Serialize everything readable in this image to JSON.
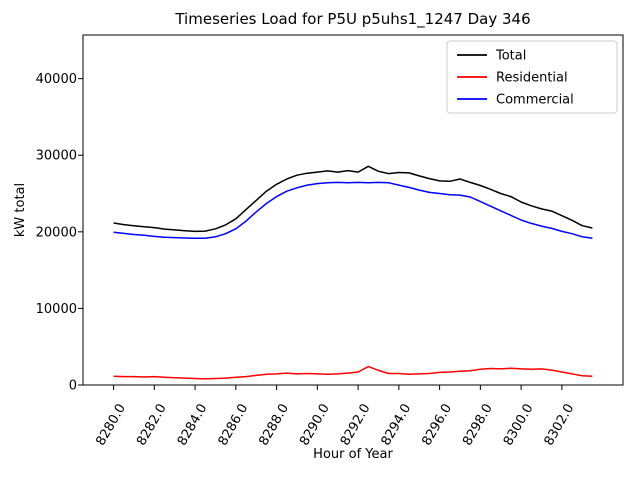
{
  "title": "Timeseries Load for P5U p5uhs1_1247  Day 346",
  "axes": {
    "xlabel": "Hour of Year",
    "ylabel": "kW total",
    "xlim": [
      8278.5,
      8305.0
    ],
    "ylim": [
      0,
      45700
    ],
    "xtick_values": [
      8280,
      8282,
      8284,
      8286,
      8288,
      8290,
      8292,
      8294,
      8296,
      8298,
      8300,
      8302
    ],
    "xtick_labels": [
      "8280.0",
      "8282.0",
      "8284.0",
      "8286.0",
      "8288.0",
      "8290.0",
      "8292.0",
      "8294.0",
      "8296.0",
      "8298.0",
      "8300.0",
      "8302.0"
    ],
    "xtick_rotation": 60,
    "ytick_values": [
      0,
      10000,
      20000,
      30000,
      40000
    ],
    "ytick_labels": [
      "0",
      "10000",
      "20000",
      "30000",
      "40000"
    ],
    "grid": false
  },
  "legend": {
    "position": "upper-right",
    "entries": [
      {
        "label": "Total",
        "color": "#000000"
      },
      {
        "label": "Residential",
        "color": "#ff0000"
      },
      {
        "label": "Commercial",
        "color": "#0000ff"
      }
    ]
  },
  "chart_data": {
    "type": "line",
    "title": "Timeseries Load for P5U p5uhs1_1247  Day 346",
    "xlabel": "Hour of Year",
    "ylabel": "kW total",
    "xlim": [
      8278.5,
      8305.0
    ],
    "ylim": [
      0,
      45700
    ],
    "grid": false,
    "legend_position": "upper right",
    "x": [
      8280.0,
      8280.5,
      8281.0,
      8281.5,
      8282.0,
      8282.5,
      8283.0,
      8283.5,
      8284.0,
      8284.5,
      8285.0,
      8285.5,
      8286.0,
      8286.5,
      8287.0,
      8287.5,
      8288.0,
      8288.5,
      8289.0,
      8289.5,
      8290.0,
      8290.5,
      8291.0,
      8291.5,
      8292.0,
      8292.5,
      8293.0,
      8293.5,
      8294.0,
      8294.5,
      8295.0,
      8295.5,
      8296.0,
      8296.5,
      8297.0,
      8297.5,
      8298.0,
      8298.5,
      8299.0,
      8299.5,
      8300.0,
      8300.5,
      8301.0,
      8301.5,
      8302.0,
      8302.5,
      8303.0,
      8303.5
    ],
    "series": [
      {
        "name": "Total",
        "color": "#000000",
        "values": [
          21150,
          20950,
          20800,
          20650,
          20550,
          20350,
          20250,
          20150,
          20050,
          20100,
          20400,
          20900,
          21700,
          22900,
          24100,
          25300,
          26200,
          26900,
          27400,
          27650,
          27800,
          27950,
          27800,
          28000,
          27800,
          28550,
          27900,
          27600,
          27750,
          27700,
          27300,
          26950,
          26650,
          26600,
          26900,
          26450,
          26050,
          25550,
          25000,
          24600,
          23900,
          23400,
          23000,
          22700,
          22100,
          21500,
          20800,
          20500
        ]
      },
      {
        "name": "Residential",
        "color": "#ff0000",
        "values": [
          1150,
          1100,
          1100,
          1050,
          1100,
          1000,
          950,
          900,
          850,
          800,
          850,
          900,
          1000,
          1100,
          1250,
          1400,
          1450,
          1550,
          1450,
          1500,
          1450,
          1400,
          1450,
          1550,
          1700,
          2400,
          1900,
          1500,
          1500,
          1400,
          1450,
          1500,
          1650,
          1700,
          1800,
          1850,
          2050,
          2150,
          2100,
          2200,
          2100,
          2050,
          2100,
          1950,
          1700,
          1450,
          1200,
          1150
        ]
      },
      {
        "name": "Commercial",
        "color": "#0000ff",
        "values": [
          19950,
          19800,
          19650,
          19550,
          19400,
          19300,
          19250,
          19200,
          19150,
          19150,
          19350,
          19750,
          20400,
          21400,
          22600,
          23700,
          24600,
          25300,
          25750,
          26100,
          26300,
          26400,
          26450,
          26400,
          26450,
          26400,
          26450,
          26400,
          26100,
          25800,
          25450,
          25150,
          25000,
          24850,
          24800,
          24550,
          23950,
          23350,
          22750,
          22150,
          21550,
          21100,
          20750,
          20450,
          20050,
          19750,
          19350,
          19150
        ]
      }
    ]
  }
}
